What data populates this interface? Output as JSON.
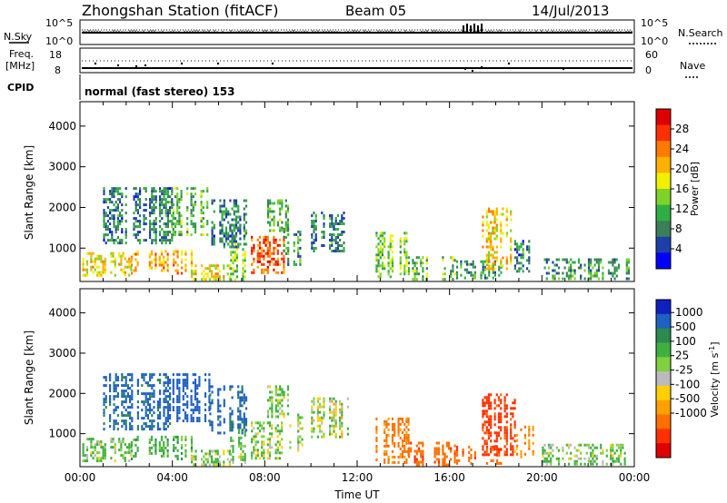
{
  "header": {
    "station": "Zhongshan Station (fitACF)",
    "beam": "Beam 05",
    "date": "14/Jul/2013"
  },
  "top_panels": {
    "nsky_label": "N.Sky",
    "nsky_ticks": [
      "10^5",
      "10^0"
    ],
    "nsearch_label": "N.Search",
    "nsearch_ticks": [
      "10^5",
      "10^0"
    ],
    "freq_label_1": "Freq.",
    "freq_label_2": "[MHz]",
    "freq_ticks": [
      "18",
      "8"
    ],
    "nave_label": "Nave",
    "nave_ticks": [
      "60",
      "0"
    ],
    "cpid_label": "CPID",
    "cpid_text": "normal (fast stereo) 153"
  },
  "chart_data": [
    {
      "type": "heatmap",
      "name": "power",
      "ylabel": "Slant Range [km]",
      "xlabel": "",
      "xlim": [
        0,
        24
      ],
      "ylim": [
        180,
        4600
      ],
      "yticks": [
        "1000",
        "2000",
        "3000",
        "4000"
      ],
      "colorbar": {
        "label": "Power [dB]",
        "ticks": [
          "4",
          "8",
          "12",
          "16",
          "20",
          "24",
          "28"
        ],
        "colors": [
          "#0000ff",
          "#1e3fa8",
          "#3a7f5a",
          "#2fae45",
          "#7fd22a",
          "#f0f000",
          "#ffb000",
          "#ff7a00",
          "#ff3000",
          "#dd0000"
        ]
      },
      "blobs": [
        {
          "t0": 0.1,
          "t1": 2.2,
          "r0": 300,
          "r1": 900,
          "v": 18
        },
        {
          "t0": 2.2,
          "t1": 4.8,
          "r0": 350,
          "r1": 950,
          "v": 22
        },
        {
          "t0": 4.8,
          "t1": 6.5,
          "r0": 250,
          "r1": 600,
          "v": 18
        },
        {
          "t0": 6.5,
          "t1": 7.2,
          "r0": 250,
          "r1": 1400,
          "v": 14
        },
        {
          "t0": 7.4,
          "t1": 8.8,
          "r0": 400,
          "r1": 1300,
          "v": 26
        },
        {
          "t0": 8.8,
          "t1": 9.6,
          "r0": 600,
          "r1": 1500,
          "v": 10
        },
        {
          "t0": 1.0,
          "t1": 4.0,
          "r0": 1100,
          "r1": 2500,
          "v": 8
        },
        {
          "t0": 4.0,
          "t1": 5.6,
          "r0": 1300,
          "r1": 2500,
          "v": 12
        },
        {
          "t0": 5.6,
          "t1": 7.2,
          "r0": 1000,
          "r1": 2200,
          "v": 8
        },
        {
          "t0": 8.1,
          "t1": 9.0,
          "r0": 1400,
          "r1": 2200,
          "v": 12
        },
        {
          "t0": 10.0,
          "t1": 11.6,
          "r0": 900,
          "r1": 1900,
          "v": 8
        },
        {
          "t0": 12.8,
          "t1": 14.2,
          "r0": 300,
          "r1": 1400,
          "v": 14
        },
        {
          "t0": 14.2,
          "t1": 16.2,
          "r0": 250,
          "r1": 800,
          "v": 12
        },
        {
          "t0": 16.2,
          "t1": 18.2,
          "r0": 250,
          "r1": 700,
          "v": 10
        },
        {
          "t0": 17.4,
          "t1": 18.8,
          "r0": 500,
          "r1": 2000,
          "v": 20
        },
        {
          "t0": 18.8,
          "t1": 19.6,
          "r0": 400,
          "r1": 1200,
          "v": 8
        },
        {
          "t0": 20.0,
          "t1": 23.8,
          "r0": 250,
          "r1": 750,
          "v": 10
        }
      ]
    },
    {
      "type": "heatmap",
      "name": "velocity",
      "ylabel": "Slant Range [km]",
      "xlabel": "Time UT",
      "xlim": [
        0,
        24
      ],
      "ylim": [
        180,
        4600
      ],
      "xticks": [
        "00:00",
        "04:00",
        "08:00",
        "12:00",
        "16:00",
        "20:00",
        "00:00"
      ],
      "yticks": [
        "1000",
        "2000",
        "3000",
        "4000"
      ],
      "colorbar": {
        "label": "Velocity [m s",
        "label_sup": "-1",
        "label_end": "]",
        "ticks": [
          "1000",
          "500",
          "100",
          "25",
          "-25",
          "-100",
          "-500",
          "-1000"
        ],
        "colors": [
          "#1020c0",
          "#2060c0",
          "#2a8a50",
          "#3fb040",
          "#80d040",
          "#bbbbbb",
          "#ffd000",
          "#ffa000",
          "#ff7000",
          "#ff3000",
          "#e00000"
        ]
      },
      "blobs": [
        {
          "t0": 0.1,
          "t1": 2.2,
          "r0": 300,
          "r1": 900,
          "v": 100
        },
        {
          "t0": 2.2,
          "t1": 4.8,
          "r0": 350,
          "r1": 950,
          "v": 200
        },
        {
          "t0": 4.8,
          "t1": 6.5,
          "r0": 250,
          "r1": 600,
          "v": 80
        },
        {
          "t0": 6.5,
          "t1": 7.2,
          "r0": 250,
          "r1": 1400,
          "v": 100
        },
        {
          "t0": 7.4,
          "t1": 8.8,
          "r0": 400,
          "r1": 1300,
          "v": 60
        },
        {
          "t0": 8.8,
          "t1": 9.6,
          "r0": 600,
          "r1": 1500,
          "v": 40
        },
        {
          "t0": 1.0,
          "t1": 4.0,
          "r0": 1100,
          "r1": 2500,
          "v": 600
        },
        {
          "t0": 4.0,
          "t1": 5.6,
          "r0": 1300,
          "r1": 2500,
          "v": 700
        },
        {
          "t0": 5.6,
          "t1": 7.2,
          "r0": 1000,
          "r1": 2200,
          "v": 600
        },
        {
          "t0": 8.1,
          "t1": 9.0,
          "r0": 1400,
          "r1": 2200,
          "v": 100
        },
        {
          "t0": 10.0,
          "t1": 11.6,
          "r0": 900,
          "r1": 1900,
          "v": 30
        },
        {
          "t0": 12.8,
          "t1": 14.2,
          "r0": 300,
          "r1": 1400,
          "v": -300
        },
        {
          "t0": 14.2,
          "t1": 16.2,
          "r0": 250,
          "r1": 800,
          "v": -400
        },
        {
          "t0": 16.2,
          "t1": 18.2,
          "r0": 250,
          "r1": 700,
          "v": -400
        },
        {
          "t0": 17.4,
          "t1": 18.8,
          "r0": 500,
          "r1": 2000,
          "v": -600
        },
        {
          "t0": 18.8,
          "t1": 19.6,
          "r0": 400,
          "r1": 1200,
          "v": -200
        },
        {
          "t0": 20.0,
          "t1": 23.8,
          "r0": 250,
          "r1": 750,
          "v": 100
        }
      ]
    }
  ]
}
